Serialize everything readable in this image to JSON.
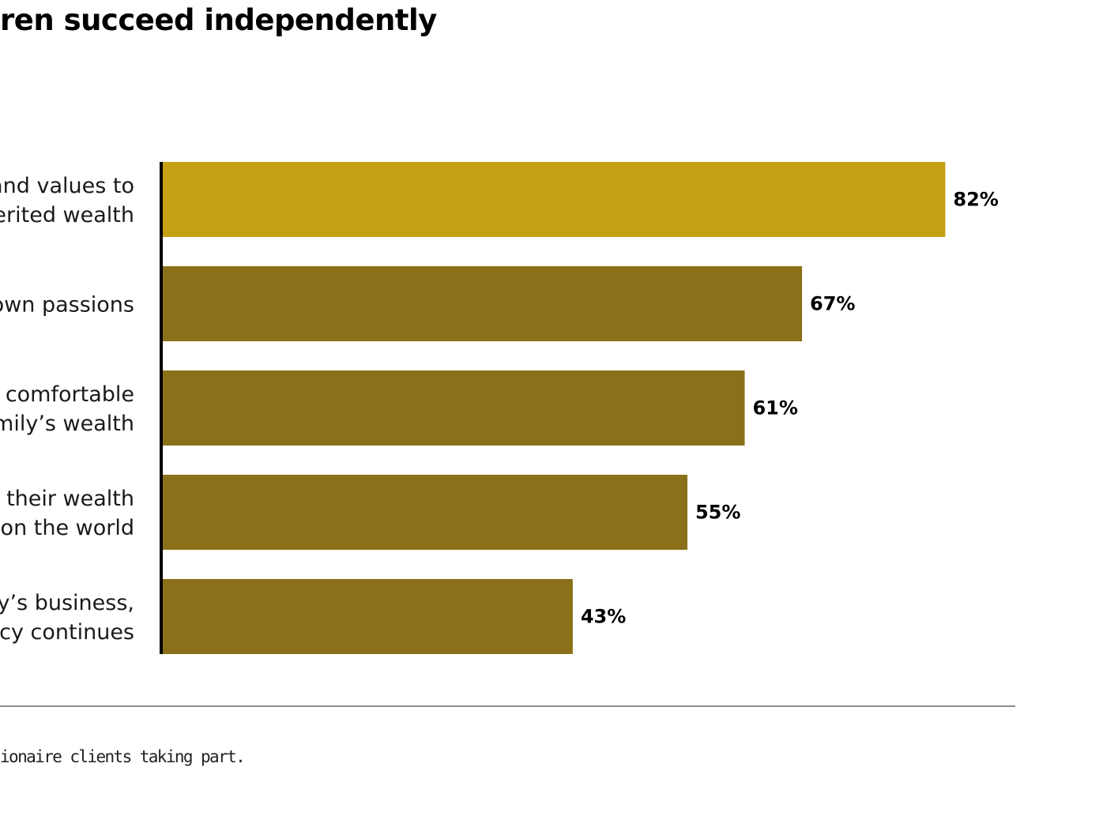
{
  "chart_data": {
    "type": "bar",
    "orientation": "horizontal",
    "title": "ren succeed independently",
    "categories": [
      [
        "and values to",
        "erited wealth"
      ],
      [
        "own passions"
      ],
      [
        "/ comfortable",
        "amily’s wealth"
      ],
      [
        "g their wealth",
        "on the world"
      ],
      [
        "ily’s business,",
        "acy continues"
      ]
    ],
    "values": [
      82,
      67,
      61,
      55,
      43
    ],
    "value_labels": [
      "82%",
      "67%",
      "61%",
      "55%",
      "43%"
    ],
    "unit": "%",
    "xlim": [
      0,
      100
    ],
    "grid": false,
    "legend": "none",
    "colors": {
      "highlight": "#C6A013",
      "default": "#8A7019",
      "axis": "#000000",
      "rule": "#666666"
    }
  },
  "footnote": "ionaire clients taking part."
}
